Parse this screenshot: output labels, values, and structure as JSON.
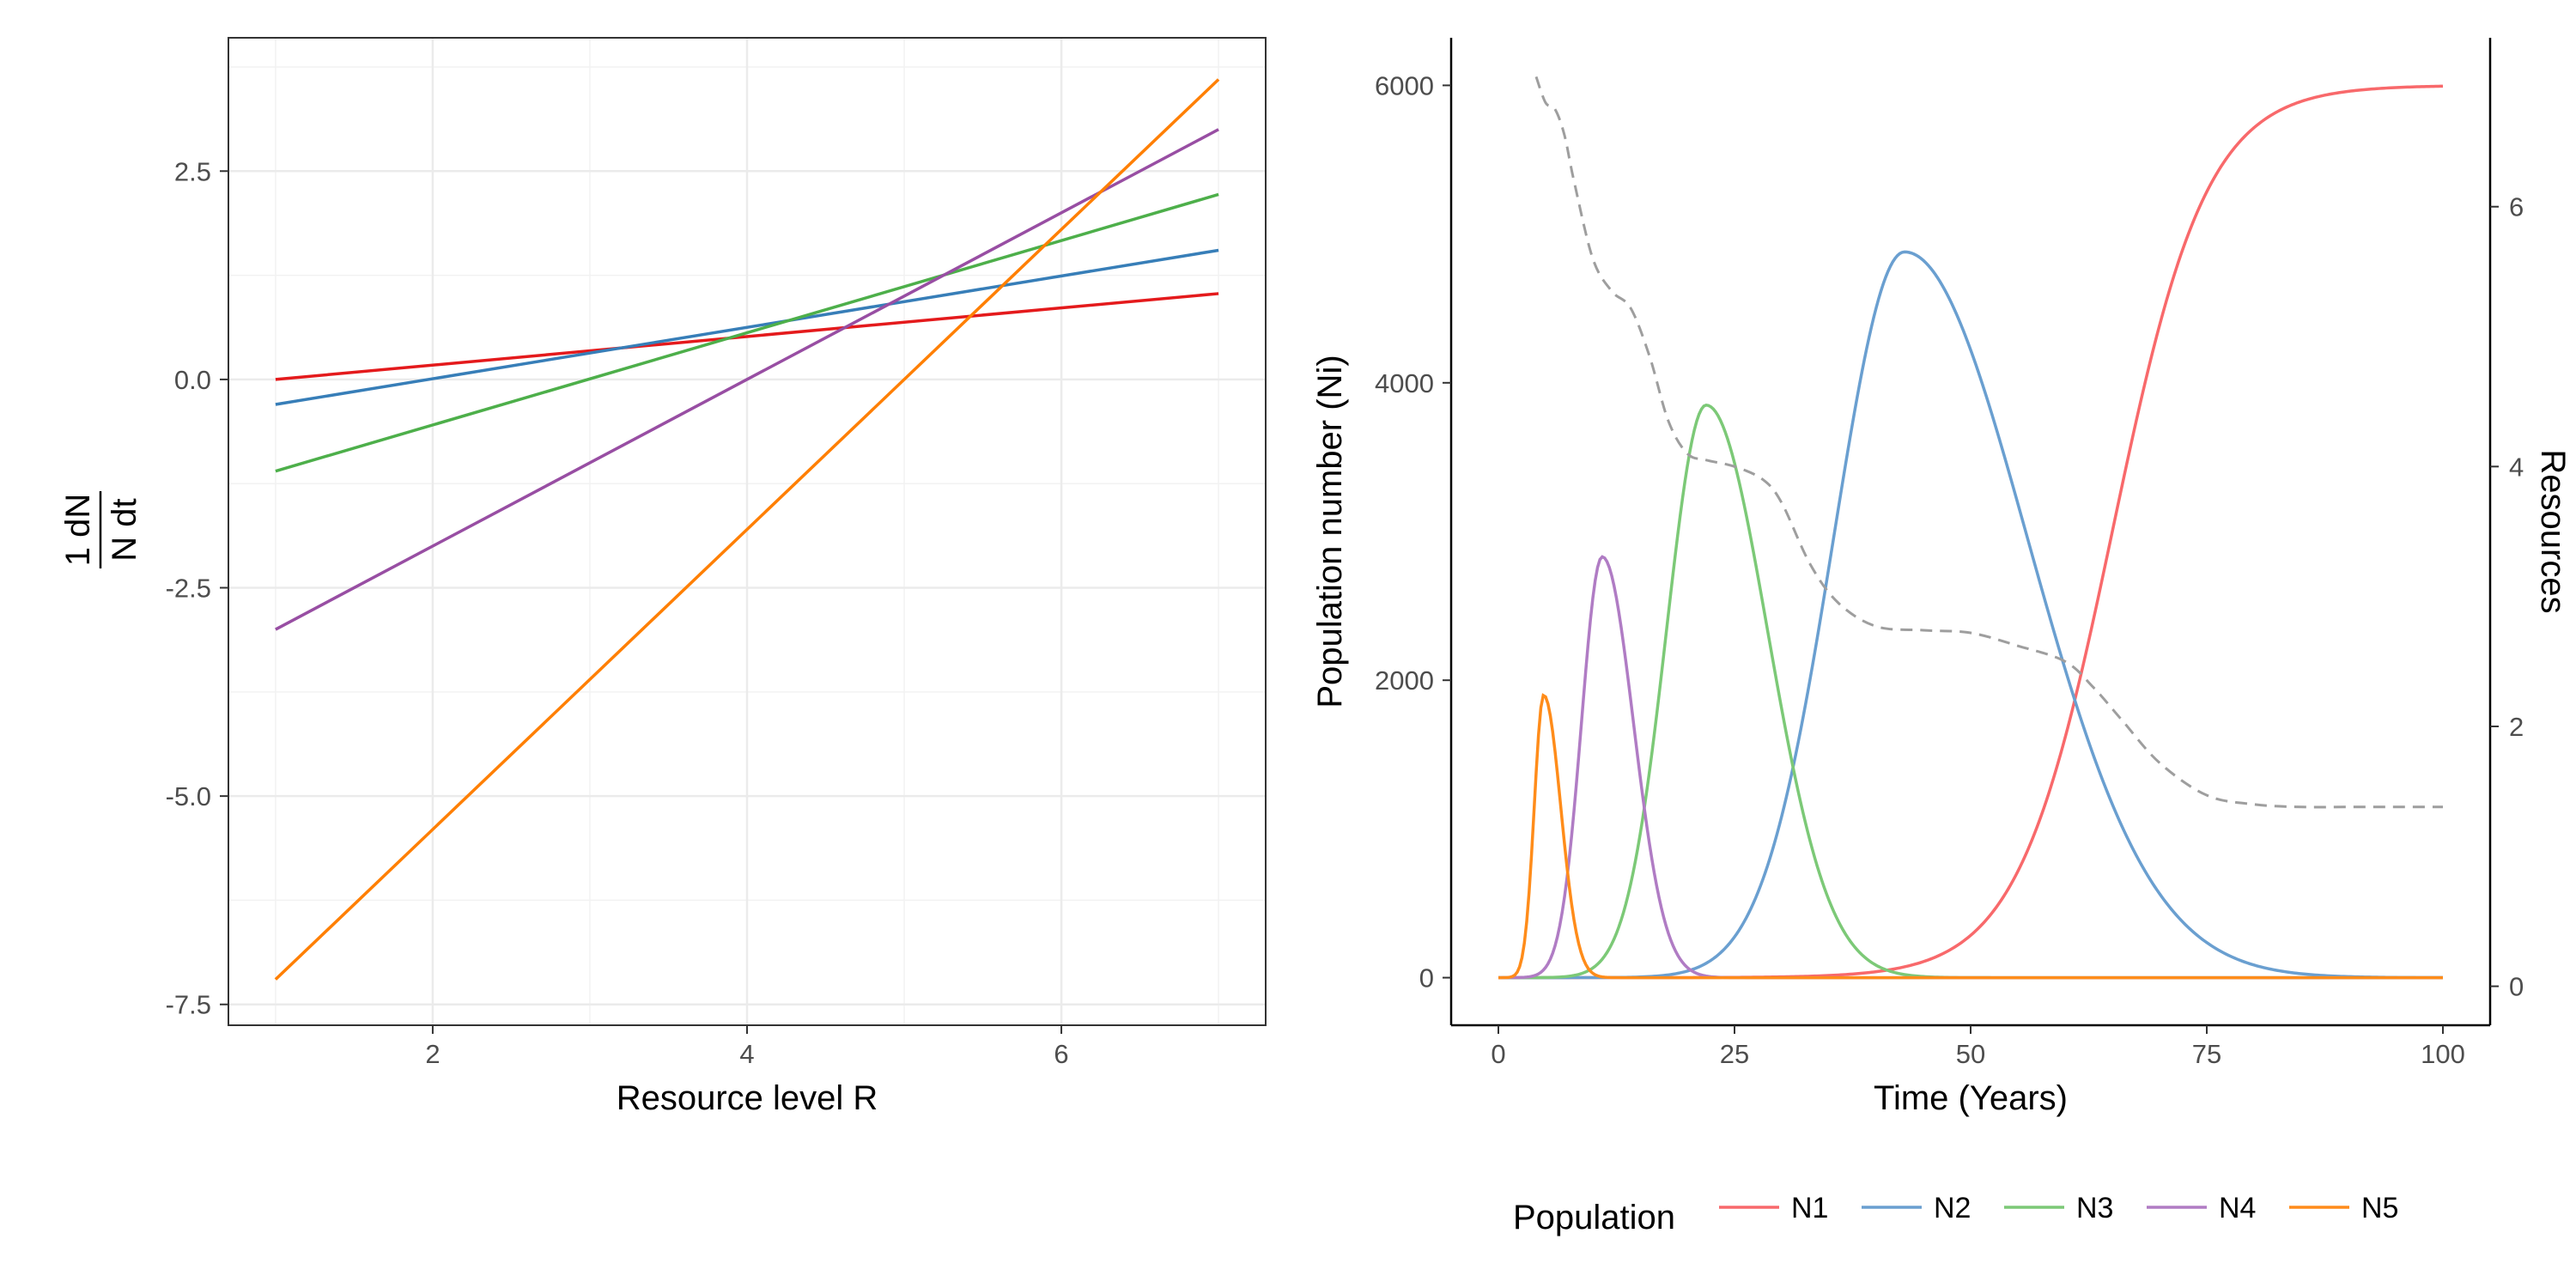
{
  "chart_data": [
    {
      "type": "line",
      "xlabel": "Resource level R",
      "ylabel_numerator": "1 dN",
      "ylabel_denominator": "N dt",
      "xlim": [
        0.7,
        7.3
      ],
      "ylim": [
        -7.75,
        4.1
      ],
      "x_ticks": [
        "2",
        "4",
        "6"
      ],
      "y_ticks": [
        "2.5",
        "0.0",
        "-2.5",
        "-5.0",
        "-7.5"
      ],
      "grid": true,
      "series": [
        {
          "name": "N1",
          "color": "#E41A1C",
          "x": [
            1,
            7
          ],
          "y": [
            0.0,
            1.03
          ]
        },
        {
          "name": "N2",
          "color": "#377EB8",
          "x": [
            1,
            7
          ],
          "y": [
            -0.3,
            1.55
          ]
        },
        {
          "name": "N3",
          "color": "#4DAF4A",
          "x": [
            1,
            7
          ],
          "y": [
            -1.1,
            2.22
          ]
        },
        {
          "name": "N4",
          "color": "#984EA3",
          "x": [
            1,
            7
          ],
          "y": [
            -3.0,
            3.0
          ]
        },
        {
          "name": "N5",
          "color": "#FF7F00",
          "x": [
            1,
            7
          ],
          "y": [
            -7.2,
            3.6
          ]
        }
      ]
    },
    {
      "type": "line",
      "xlabel": "Time (Years)",
      "ylabel": "Population number (Ni)",
      "y2label": "Resources",
      "xlim": [
        -5,
        105
      ],
      "ylim": [
        -320,
        6320
      ],
      "y2lim": [
        -0.3,
        7.3
      ],
      "x_ticks": [
        "0",
        "25",
        "50",
        "75",
        "100"
      ],
      "y_ticks": [
        "0",
        "2000",
        "4000",
        "6000"
      ],
      "y2_ticks": [
        "0",
        "2",
        "4",
        "6"
      ],
      "grid": false,
      "legend": {
        "title": "Population",
        "position": "bottom"
      },
      "series": [
        {
          "name": "N1",
          "color": "#F8696B",
          "shape": "logistic",
          "K": 6000,
          "mid": 65,
          "rate": 0.2,
          "range": [
            0,
            100
          ]
        },
        {
          "name": "N2",
          "color": "#6A9FD0",
          "shape": "pulse",
          "peak": 4880,
          "center": 43,
          "rise": 7.5,
          "fall": 13,
          "range": [
            0,
            100
          ]
        },
        {
          "name": "N3",
          "color": "#7CC977",
          "shape": "pulse",
          "peak": 3850,
          "center": 22,
          "rise": 4.2,
          "fall": 6.5,
          "range": [
            0,
            100
          ]
        },
        {
          "name": "N4",
          "color": "#B07CC4",
          "shape": "pulse",
          "peak": 2830,
          "center": 11,
          "rise": 2.2,
          "fall": 3.3,
          "range": [
            0,
            100
          ]
        },
        {
          "name": "N5",
          "color": "#FF8C1A",
          "shape": "pulse",
          "peak": 1900,
          "center": 4.8,
          "rise": 1.0,
          "fall": 1.8,
          "range": [
            0,
            100
          ]
        }
      ],
      "resources": {
        "color": "#9E9E9E",
        "dashed": true,
        "axis": "right",
        "x": [
          4,
          5,
          6,
          7,
          8,
          10,
          12,
          14,
          16,
          18,
          20,
          22,
          25,
          28,
          30,
          33,
          36,
          40,
          45,
          50,
          55,
          60,
          63,
          66,
          70,
          75,
          80,
          85,
          90,
          95,
          100
        ],
        "y": [
          7.0,
          6.8,
          6.75,
          6.55,
          6.2,
          5.6,
          5.35,
          5.22,
          4.85,
          4.35,
          4.1,
          4.05,
          4.0,
          3.9,
          3.72,
          3.25,
          2.95,
          2.77,
          2.74,
          2.72,
          2.62,
          2.5,
          2.3,
          2.05,
          1.72,
          1.47,
          1.4,
          1.38,
          1.38,
          1.38,
          1.38
        ]
      }
    }
  ]
}
